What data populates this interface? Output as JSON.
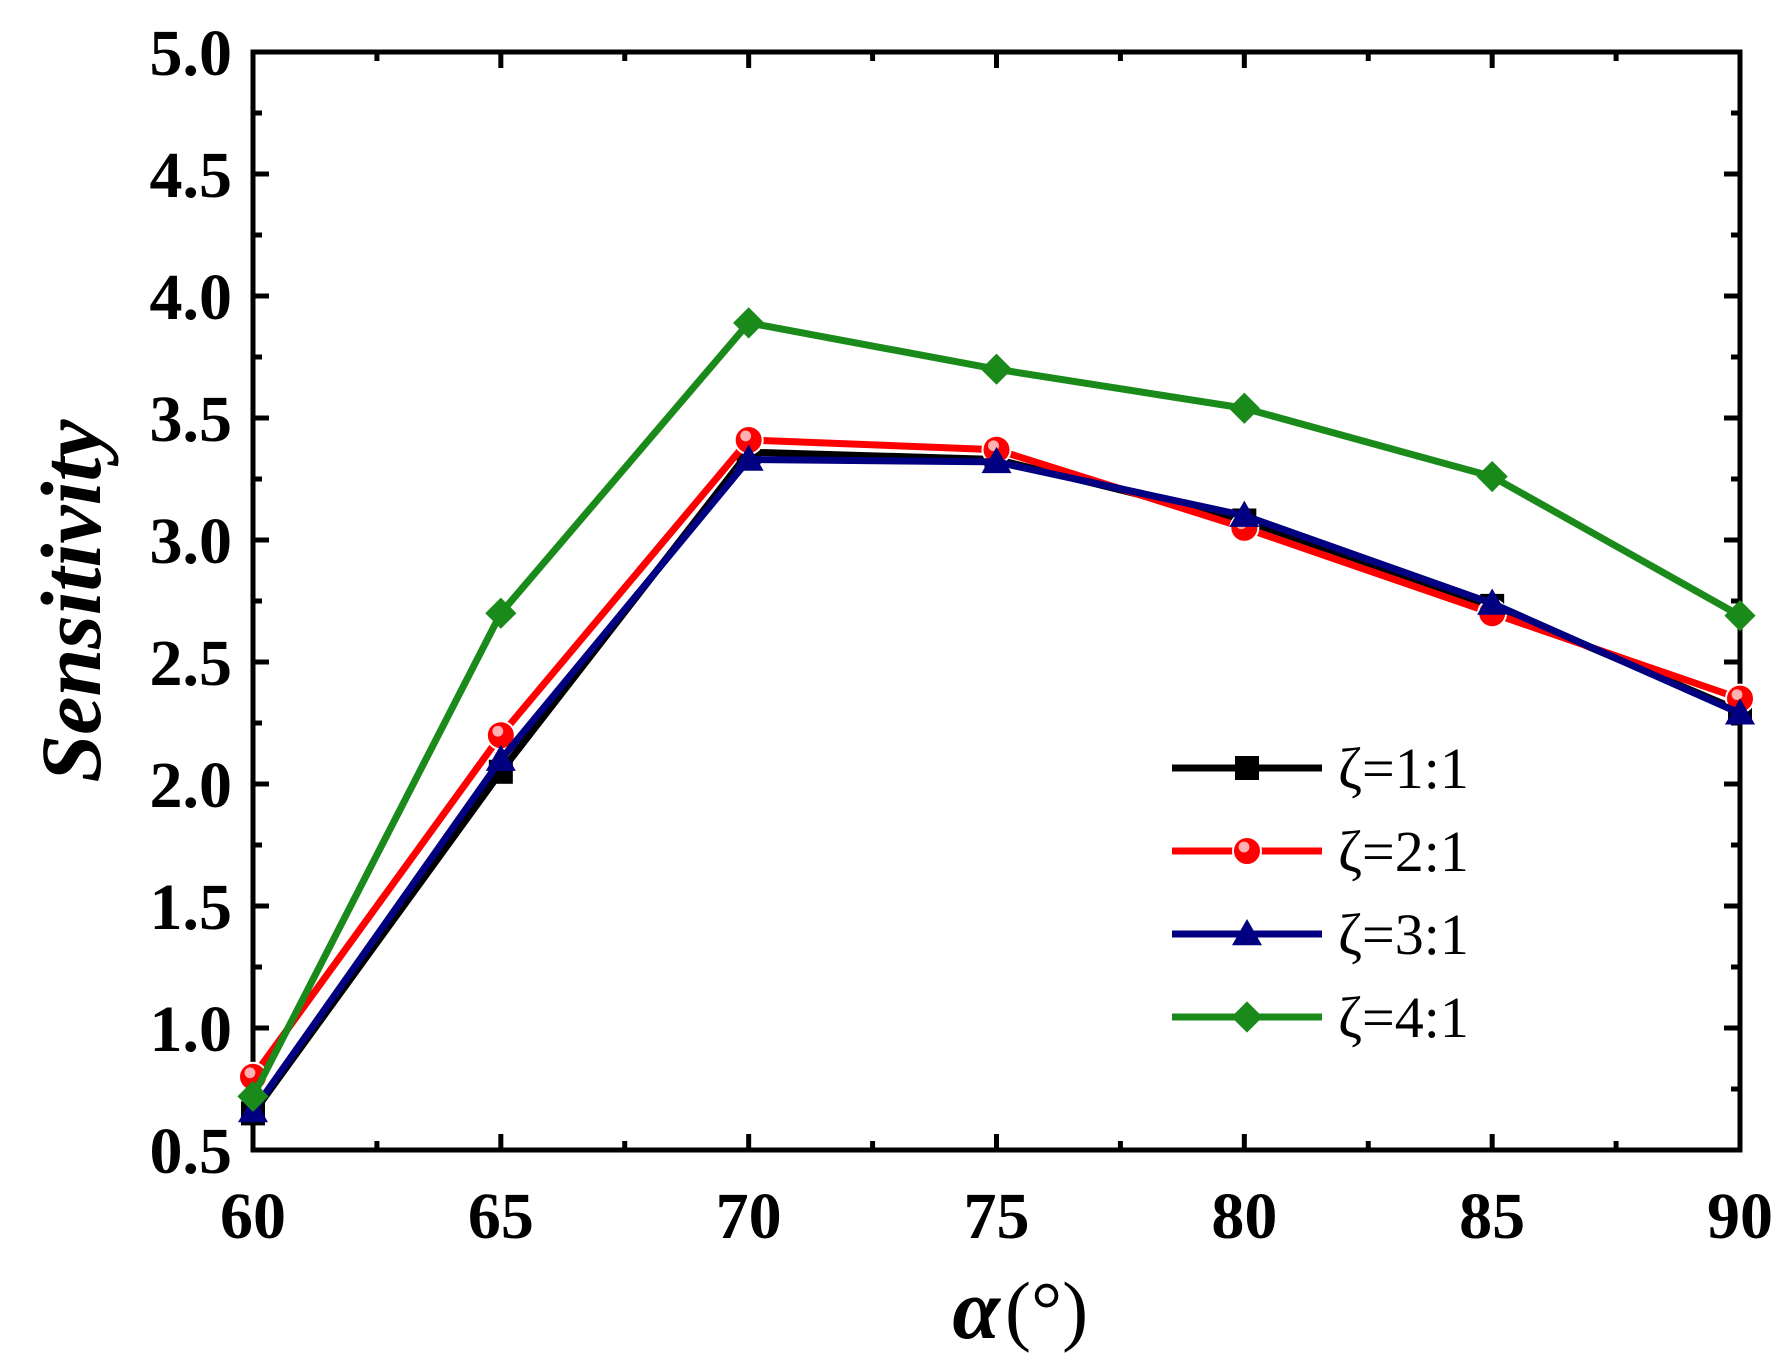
{
  "chart_data": {
    "type": "line",
    "title": "",
    "xlabel": "α",
    "xlabel_unit": "(°)",
    "ylabel": "Sensitivity",
    "x": [
      60,
      65,
      70,
      75,
      80,
      85,
      90
    ],
    "xlim": [
      60,
      90
    ],
    "ylim": [
      0.5,
      5.0
    ],
    "x_ticks": [
      "60",
      "65",
      "70",
      "75",
      "80",
      "85",
      "90"
    ],
    "y_ticks": [
      "0.5",
      "1.0",
      "1.5",
      "2.0",
      "2.5",
      "3.0",
      "3.5",
      "4.0",
      "4.5",
      "5.0"
    ],
    "grid": false,
    "legend_position": "lower-right",
    "series": [
      {
        "name": "ζ=1:1",
        "color": "#000000",
        "marker": "square",
        "values": [
          0.65,
          2.05,
          3.36,
          3.33,
          3.08,
          2.73,
          2.3
        ]
      },
      {
        "name": "ζ=2:1",
        "color": "#ff0000",
        "marker": "circle",
        "values": [
          0.8,
          2.2,
          3.41,
          3.37,
          3.05,
          2.7,
          2.35
        ]
      },
      {
        "name": "ζ=3:1",
        "color": "#000080",
        "marker": "triangle",
        "values": [
          0.66,
          2.1,
          3.33,
          3.32,
          3.1,
          2.74,
          2.29
        ]
      },
      {
        "name": "ζ=4:1",
        "color": "#1a8a1a",
        "marker": "diamond",
        "values": [
          0.72,
          2.7,
          3.89,
          3.7,
          3.54,
          3.26,
          2.69
        ]
      }
    ]
  }
}
